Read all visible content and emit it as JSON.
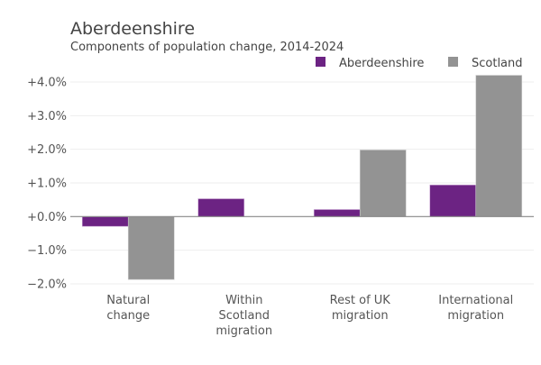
{
  "chart_data": {
    "type": "bar",
    "title": "Aberdeenshire",
    "subtitle": "Components of population change, 2014-2024",
    "xlabel": "",
    "ylabel": "",
    "categories": [
      [
        "Natural",
        "change"
      ],
      [
        "Within",
        "Scotland",
        "migration"
      ],
      [
        "Rest of UK",
        "migration"
      ],
      [
        "International",
        "migration"
      ]
    ],
    "series": [
      {
        "name": "Aberdeenshire",
        "color": "#6c2383",
        "values": [
          -0.29,
          0.53,
          0.21,
          0.94
        ]
      },
      {
        "name": "Scotland",
        "color": "#939393",
        "values": [
          -1.87,
          0.0,
          1.98,
          4.2
        ]
      }
    ],
    "ylim": [
      -2.0,
      4.0
    ],
    "yticks": [
      4.0,
      3.0,
      2.0,
      1.0,
      0.0,
      -1.0,
      -2.0
    ],
    "ytick_labels": [
      "+4.0%",
      "+3.0%",
      "+2.0%",
      "+1.0%",
      "+0.0%",
      "−1.0%",
      "−2.0%"
    ],
    "grid": true,
    "legend_position": "top-right"
  }
}
